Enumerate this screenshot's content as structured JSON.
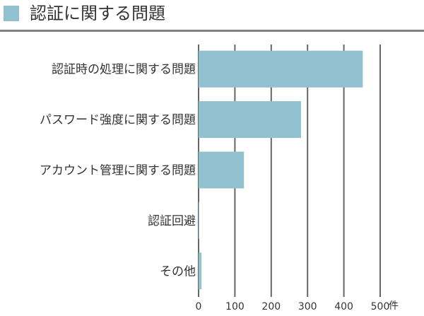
{
  "page": {
    "title": "認証に関する問題"
  },
  "colors": {
    "accent": "#91c0cf",
    "gridline": "#666666",
    "title_rule": "#808080"
  },
  "chart_data": {
    "type": "bar",
    "orientation": "horizontal",
    "categories": [
      "認証時の処理に関する問題",
      "パスワード強度に関する問題",
      "アカウント管理に関する問題",
      "認証回避",
      "その他"
    ],
    "values": [
      452,
      282,
      125,
      2,
      8
    ],
    "xlim": [
      0,
      500
    ],
    "x_ticks": [
      0,
      100,
      200,
      300,
      400,
      500
    ],
    "x_tick_labels": [
      "0",
      "100",
      "200",
      "300",
      "400",
      "500"
    ],
    "x_unit": "件",
    "grid": true,
    "legend": "none"
  }
}
